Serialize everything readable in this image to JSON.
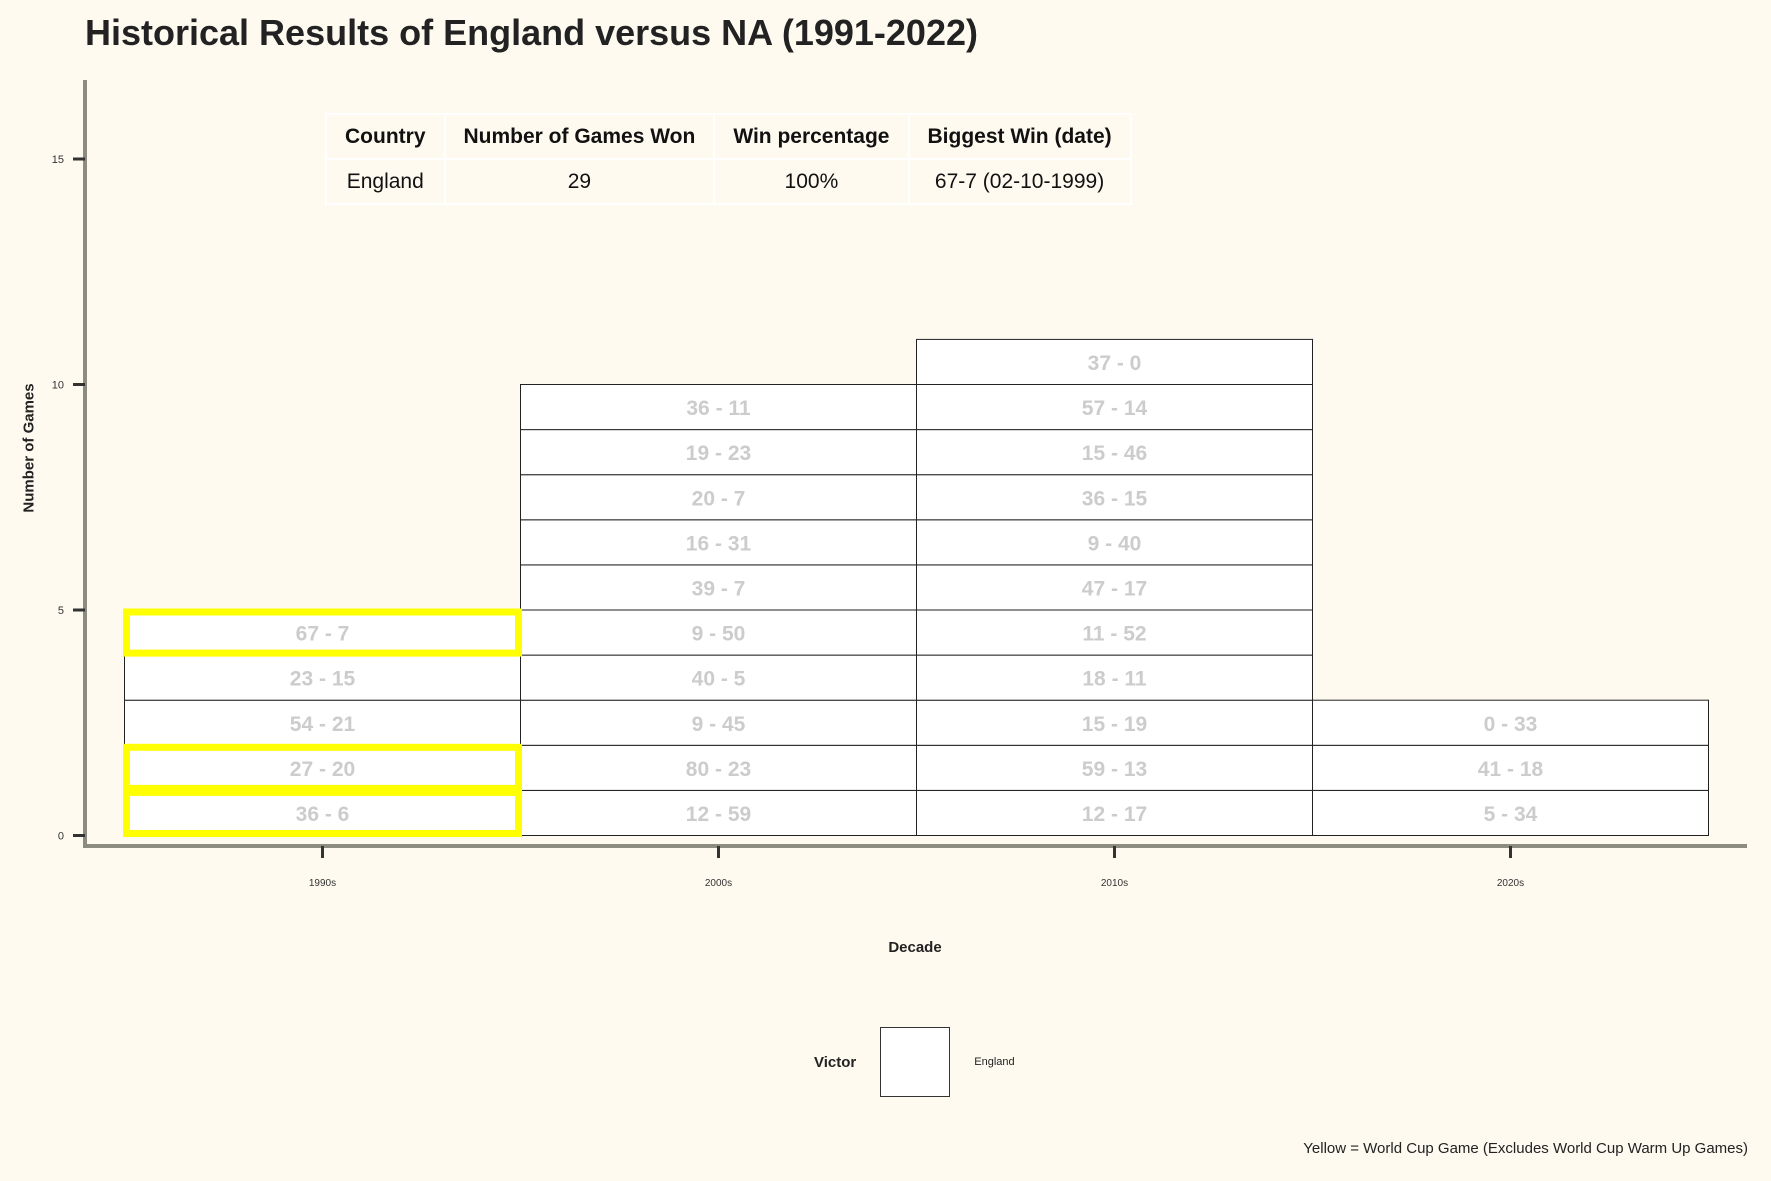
{
  "chart_data": {
    "type": "bar",
    "title": "Historical Results of England versus NA (1991-2022)",
    "xlabel": "Decade",
    "ylabel": "Number of Games",
    "ylim": [
      0,
      16.5
    ],
    "yticks": [
      0,
      5,
      10,
      15
    ],
    "categories": [
      "1990s",
      "2000s",
      "2010s",
      "2020s"
    ],
    "values": [
      5,
      10,
      11,
      3
    ],
    "games": [
      [
        {
          "score": "36 - 6",
          "world_cup": true
        },
        {
          "score": "27 - 20",
          "world_cup": true
        },
        {
          "score": "54 - 21",
          "world_cup": false
        },
        {
          "score": "23 - 15",
          "world_cup": false
        },
        {
          "score": "67 - 7",
          "world_cup": true
        }
      ],
      [
        {
          "score": "12 - 59",
          "world_cup": false
        },
        {
          "score": "80 - 23",
          "world_cup": false
        },
        {
          "score": "9 - 45",
          "world_cup": false
        },
        {
          "score": "40 - 5",
          "world_cup": false
        },
        {
          "score": "9 - 50",
          "world_cup": false
        },
        {
          "score": "39 - 7",
          "world_cup": false
        },
        {
          "score": "16 - 31",
          "world_cup": false
        },
        {
          "score": "20 - 7",
          "world_cup": false
        },
        {
          "score": "19 - 23",
          "world_cup": false
        },
        {
          "score": "36 - 11",
          "world_cup": false
        }
      ],
      [
        {
          "score": "12 - 17",
          "world_cup": false
        },
        {
          "score": "59 - 13",
          "world_cup": false
        },
        {
          "score": "15 - 19",
          "world_cup": false
        },
        {
          "score": "18 - 11",
          "world_cup": false
        },
        {
          "score": "11 - 52",
          "world_cup": false
        },
        {
          "score": "47 - 17",
          "world_cup": false
        },
        {
          "score": "9 - 40",
          "world_cup": false
        },
        {
          "score": "36 - 15",
          "world_cup": false
        },
        {
          "score": "15 - 46",
          "world_cup": false
        },
        {
          "score": "57 - 14",
          "world_cup": false
        },
        {
          "score": "37 - 0",
          "world_cup": false
        }
      ],
      [
        {
          "score": "5 - 34",
          "world_cup": false
        },
        {
          "score": "41 - 18",
          "world_cup": false
        },
        {
          "score": "0 - 33",
          "world_cup": false
        }
      ]
    ],
    "legend": {
      "title": "Victor",
      "entries": [
        "England"
      ],
      "placement": "bottom"
    },
    "colors": {
      "fill": "#ffffff",
      "world_cup_outline": "#ffff00",
      "score_text": "#cccccc",
      "background": "#fefaf0"
    },
    "caption": "Yellow = World Cup Game (Excludes World Cup Warm Up Games)"
  },
  "summary_table": {
    "headers": [
      "Country",
      "Number of Games Won",
      "Win percentage",
      "Biggest Win (date)"
    ],
    "row": [
      "England",
      "29",
      "100%",
      "67-7 (02-10-1999)"
    ]
  }
}
